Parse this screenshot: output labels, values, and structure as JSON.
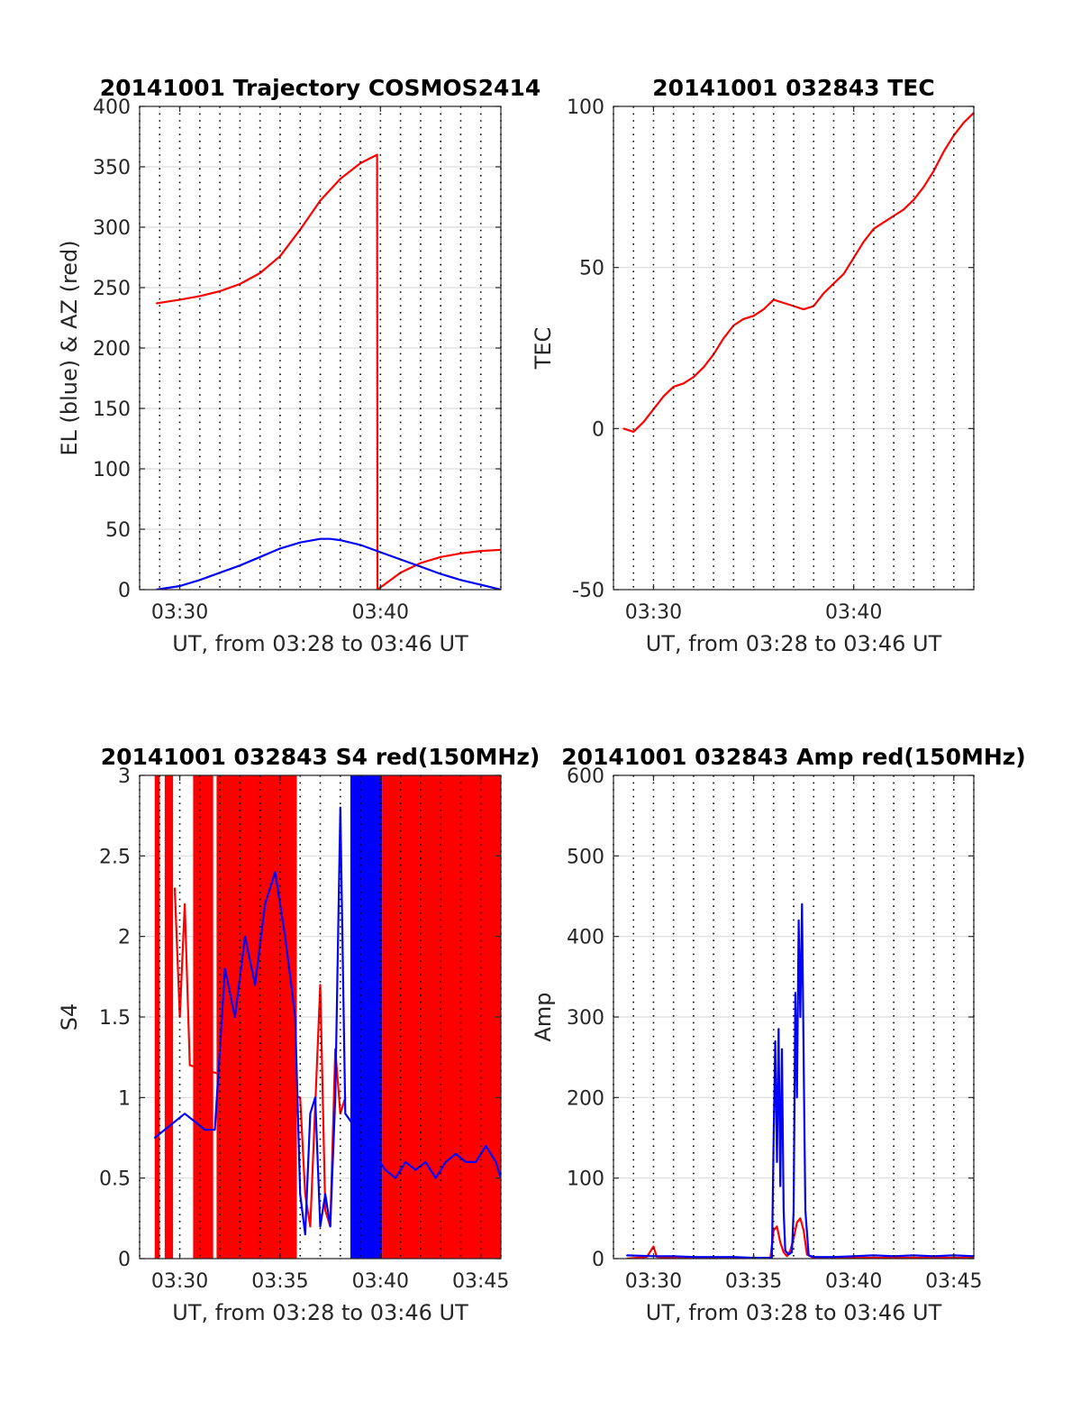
{
  "chart_data": [
    {
      "type": "line",
      "title": "20141001 Trajectory COSMOS2414",
      "xlabel": "UT, from 03:28 to 03:46 UT",
      "ylabel": "EL (blue) & AZ (red)",
      "xlim": [
        "03:28",
        "03:46"
      ],
      "ylim": [
        0,
        400
      ],
      "xticks": [
        "03:30",
        "03:40"
      ],
      "yticks": [
        "0",
        "50",
        "100",
        "150",
        "200",
        "250",
        "300",
        "350",
        "400"
      ],
      "grid": true,
      "series": [
        {
          "color": "#ff0000",
          "x": [
            "03:28:50",
            "03:30:00",
            "03:31:00",
            "03:32:00",
            "03:33:00",
            "03:34:00",
            "03:35:00",
            "03:36:00",
            "03:37:00",
            "03:38:00",
            "03:39:00",
            "03:39:50",
            "03:39:51",
            "03:41:00",
            "03:42:00",
            "03:43:00",
            "03:44:00",
            "03:45:00",
            "03:46:00"
          ],
          "values": [
            237,
            240,
            243,
            247,
            253,
            262,
            276,
            298,
            322,
            340,
            353,
            360,
            0,
            14,
            22,
            27,
            30,
            32,
            33
          ]
        },
        {
          "color": "#0000ff",
          "x": [
            "03:28:50",
            "03:30:00",
            "03:31:00",
            "03:32:00",
            "03:33:00",
            "03:34:00",
            "03:35:00",
            "03:36:00",
            "03:37:00",
            "03:37:30",
            "03:38:00",
            "03:39:00",
            "03:40:00",
            "03:41:00",
            "03:42:00",
            "03:43:00",
            "03:44:00",
            "03:45:00",
            "03:46:00"
          ],
          "values": [
            0,
            3,
            8,
            14,
            20,
            27,
            34,
            39,
            42,
            42,
            41,
            37,
            31,
            25,
            19,
            13,
            8,
            4,
            0
          ]
        }
      ]
    },
    {
      "type": "line",
      "title": "20141001 032843 TEC",
      "xlabel": "UT, from 03:28 to 03:46 UT",
      "ylabel": "TEC",
      "xlim": [
        "03:28",
        "03:46"
      ],
      "ylim": [
        -50,
        100
      ],
      "xticks": [
        "03:30",
        "03:40"
      ],
      "yticks": [
        "-50",
        "0",
        "50",
        "100"
      ],
      "grid": true,
      "series": [
        {
          "color": "#ff0000",
          "x": [
            "03:28:30",
            "03:29:00",
            "03:29:30",
            "03:30:00",
            "03:30:30",
            "03:31:00",
            "03:31:30",
            "03:32:00",
            "03:32:30",
            "03:33:00",
            "03:33:30",
            "03:34:00",
            "03:34:30",
            "03:35:00",
            "03:35:30",
            "03:36:00",
            "03:36:30",
            "03:37:00",
            "03:37:30",
            "03:38:00",
            "03:38:30",
            "03:39:00",
            "03:39:30",
            "03:40:00",
            "03:40:30",
            "03:41:00",
            "03:41:30",
            "03:42:00",
            "03:42:30",
            "03:43:00",
            "03:43:30",
            "03:44:00",
            "03:44:30",
            "03:45:00",
            "03:45:30",
            "03:46:00"
          ],
          "values": [
            0,
            -1,
            2,
            6,
            10,
            13,
            14,
            16,
            19,
            23,
            28,
            32,
            34,
            35,
            37,
            40,
            39,
            38,
            37,
            38,
            42,
            45,
            48,
            53,
            58,
            62,
            64,
            66,
            68,
            71,
            75,
            80,
            86,
            91,
            95,
            98
          ]
        }
      ]
    },
    {
      "type": "line",
      "title": "20141001 032843 S4 red(150MHz)",
      "xlabel": "UT, from 03:28 to 03:46 UT",
      "ylabel": "S4",
      "xlim": [
        "03:28",
        "03:46"
      ],
      "ylim": [
        0,
        3
      ],
      "xticks": [
        "03:30",
        "03:35",
        "03:40",
        "03:45"
      ],
      "yticks": [
        "0",
        "0.5",
        "1",
        "1.5",
        "2",
        "2.5",
        "3"
      ],
      "grid": true,
      "red_saturated_bands": [
        [
          "03:28:45",
          "03:29:00"
        ],
        [
          "03:29:15",
          "03:29:40"
        ],
        [
          "03:30:40",
          "03:31:40"
        ],
        [
          "03:31:50",
          "03:35:50"
        ],
        [
          "03:40:05",
          "03:46:00"
        ]
      ],
      "blue_saturated_bands": [
        [
          "03:38:30",
          "03:40:05"
        ]
      ],
      "series": [
        {
          "color": "#ff0000",
          "x": [
            "03:29:45",
            "03:30:00",
            "03:30:15",
            "03:30:30",
            "03:36:00",
            "03:36:15",
            "03:36:30",
            "03:37:00",
            "03:37:15",
            "03:37:30",
            "03:37:45",
            "03:38:00",
            "03:38:15"
          ],
          "values": [
            2.3,
            1.5,
            2.2,
            1.2,
            1.0,
            0.4,
            0.2,
            1.7,
            0.3,
            0.2,
            1.3,
            0.9,
            1.0
          ]
        },
        {
          "color": "#0000ff",
          "x": [
            "03:28:45",
            "03:29:15",
            "03:29:45",
            "03:30:15",
            "03:30:45",
            "03:31:15",
            "03:31:45",
            "03:32:15",
            "03:32:45",
            "03:33:15",
            "03:33:45",
            "03:34:15",
            "03:34:45",
            "03:35:15",
            "03:35:45",
            "03:36:00",
            "03:36:15",
            "03:36:30",
            "03:36:45",
            "03:37:00",
            "03:37:15",
            "03:37:30",
            "03:37:45",
            "03:38:00",
            "03:38:15",
            "03:40:15",
            "03:40:45",
            "03:41:15",
            "03:41:45",
            "03:42:15",
            "03:42:45",
            "03:43:15",
            "03:43:45",
            "03:44:15",
            "03:44:45",
            "03:45:15",
            "03:45:45",
            "03:46:00"
          ],
          "values": [
            0.75,
            0.8,
            0.85,
            0.9,
            0.85,
            0.8,
            0.8,
            1.8,
            1.5,
            2.0,
            1.7,
            2.2,
            2.4,
            2.0,
            1.5,
            0.4,
            0.15,
            0.9,
            1.0,
            0.2,
            0.4,
            0.2,
            1.0,
            2.8,
            0.9,
            0.55,
            0.5,
            0.6,
            0.55,
            0.6,
            0.5,
            0.6,
            0.65,
            0.6,
            0.6,
            0.7,
            0.6,
            0.5
          ]
        }
      ]
    },
    {
      "type": "line",
      "title": "20141001 032843 Amp red(150MHz)",
      "xlabel": "UT, from 03:28 to 03:46 UT",
      "ylabel": "Amp",
      "xlim": [
        "03:28",
        "03:46"
      ],
      "ylim": [
        0,
        600
      ],
      "xticks": [
        "03:30",
        "03:35",
        "03:40",
        "03:45"
      ],
      "yticks": [
        "0",
        "100",
        "200",
        "300",
        "400",
        "500",
        "600"
      ],
      "grid": true,
      "series": [
        {
          "color": "#ff0000",
          "x": [
            "03:28:40",
            "03:29:40",
            "03:30:00",
            "03:30:10",
            "03:31:00",
            "03:35:50",
            "03:36:00",
            "03:36:10",
            "03:36:20",
            "03:36:30",
            "03:36:40",
            "03:36:50",
            "03:37:00",
            "03:37:10",
            "03:37:20",
            "03:37:30",
            "03:37:40",
            "03:38:00",
            "03:46:00"
          ],
          "values": [
            0,
            2,
            15,
            2,
            1,
            0,
            35,
            40,
            20,
            8,
            3,
            10,
            25,
            45,
            50,
            35,
            5,
            1,
            1
          ]
        },
        {
          "color": "#0000ff",
          "x": [
            "03:28:40",
            "03:30:00",
            "03:31:00",
            "03:32:00",
            "03:33:00",
            "03:34:00",
            "03:35:00",
            "03:35:55",
            "03:36:00",
            "03:36:05",
            "03:36:10",
            "03:36:15",
            "03:36:20",
            "03:36:25",
            "03:36:30",
            "03:36:35",
            "03:36:45",
            "03:36:55",
            "03:37:00",
            "03:37:05",
            "03:37:10",
            "03:37:15",
            "03:37:20",
            "03:37:25",
            "03:37:30",
            "03:37:35",
            "03:37:45",
            "03:38:00",
            "03:39:00",
            "03:40:00",
            "03:41:00",
            "03:42:00",
            "03:43:00",
            "03:44:00",
            "03:45:00",
            "03:46:00"
          ],
          "values": [
            4,
            3,
            3,
            2,
            2,
            2,
            1,
            1,
            150,
            270,
            120,
            285,
            90,
            260,
            60,
            10,
            5,
            8,
            60,
            330,
            200,
            420,
            300,
            440,
            250,
            60,
            4,
            2,
            2,
            3,
            4,
            3,
            4,
            3,
            4,
            3
          ]
        }
      ]
    }
  ]
}
